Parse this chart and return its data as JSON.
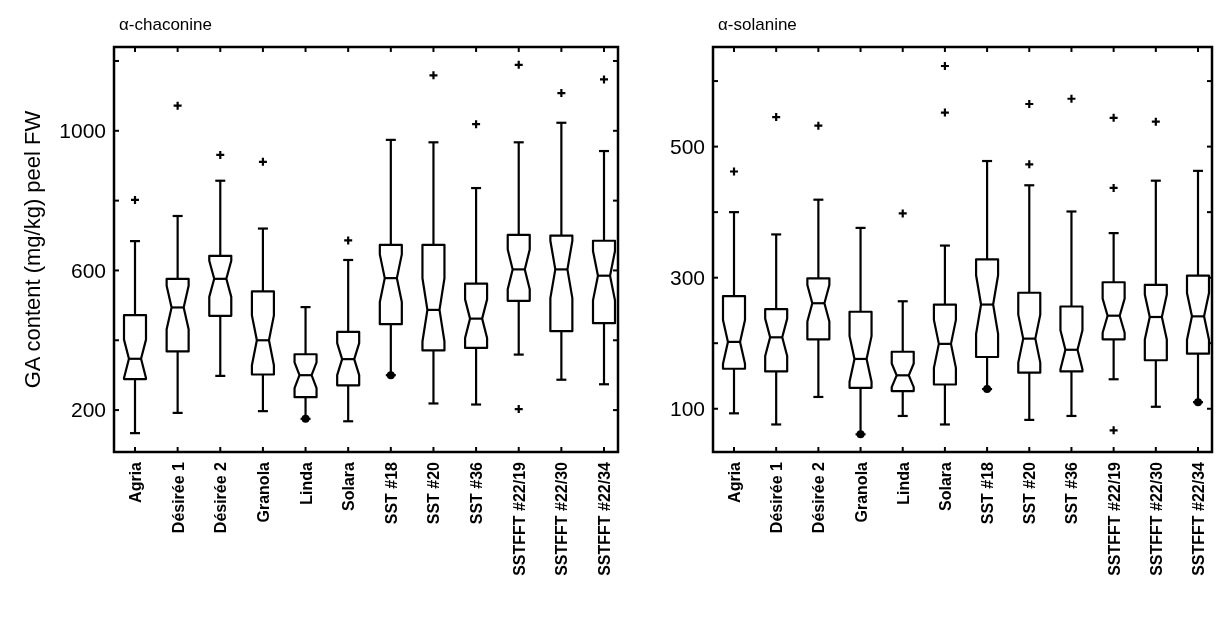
{
  "chart_data": [
    {
      "type": "box",
      "title": "α-chaconine",
      "ylabel": "GA content (mg/kg) peel FW",
      "categories": [
        "Agria",
        "Désirée 1",
        "Désirée 2",
        "Granola",
        "Linda",
        "Solara",
        "SST #18",
        "SST #20",
        "SST #36",
        "SSTFFT #22/19",
        "SSTFFT #22/30",
        "SSTFFT #22/34"
      ],
      "ylim": [
        80,
        1240
      ],
      "yticks": [
        {
          "value": 200,
          "label": "200"
        },
        {
          "value": 400,
          "label": null
        },
        {
          "value": 600,
          "label": "600"
        },
        {
          "value": 800,
          "label": null
        },
        {
          "value": 1000,
          "label": "1000"
        },
        {
          "value": 1200,
          "label": null
        }
      ],
      "boxes": [
        {
          "low": 134,
          "q1": 289,
          "median": 347,
          "q3": 472,
          "high": 684,
          "outliers": [
            802
          ]
        },
        {
          "low": 192,
          "q1": 368,
          "median": 494,
          "q3": 576,
          "high": 756,
          "outliers": [
            1072
          ]
        },
        {
          "low": 298,
          "q1": 470,
          "median": 576,
          "q3": 642,
          "high": 857,
          "outliers": [
            931
          ]
        },
        {
          "low": 197,
          "q1": 302,
          "median": 400,
          "q3": 540,
          "high": 720,
          "outliers": [
            911
          ]
        },
        {
          "low": 175,
          "q1": 237,
          "median": 300,
          "q3": 360,
          "high": 495,
          "outliers": [
            175
          ]
        },
        {
          "low": 168,
          "q1": 271,
          "median": 346,
          "q3": 424,
          "high": 630,
          "outliers": [
            686
          ]
        },
        {
          "low": 300,
          "q1": 446,
          "median": 578,
          "q3": 673,
          "high": 974,
          "outliers": [
            300
          ]
        },
        {
          "low": 219,
          "q1": 371,
          "median": 487,
          "q3": 673,
          "high": 967,
          "outliers": [
            1159
          ]
        },
        {
          "low": 216,
          "q1": 378,
          "median": 462,
          "q3": 562,
          "high": 836,
          "outliers": [
            1019
          ]
        },
        {
          "low": 359,
          "q1": 513,
          "median": 603,
          "q3": 702,
          "high": 967,
          "outliers": [
            1189,
            203
          ]
        },
        {
          "low": 287,
          "q1": 426,
          "median": 603,
          "q3": 700,
          "high": 1023,
          "outliers": [
            1108
          ]
        },
        {
          "low": 274,
          "q1": 449,
          "median": 585,
          "q3": 685,
          "high": 942,
          "outliers": [
            1147
          ]
        }
      ]
    },
    {
      "type": "box",
      "title": "α-solanine",
      "categories": [
        "Agria",
        "Désirée 1",
        "Désirée 2",
        "Granola",
        "Linda",
        "Solara",
        "SST #18",
        "SST #20",
        "SST #36",
        "SSTFFT #22/19",
        "SSTFFT #22/30",
        "SSTFFT #22/34"
      ],
      "ylim": [
        34,
        652
      ],
      "yticks": [
        {
          "value": 100,
          "label": "100"
        },
        {
          "value": 200,
          "label": null
        },
        {
          "value": 300,
          "label": "300"
        },
        {
          "value": 400,
          "label": null
        },
        {
          "value": 500,
          "label": "500"
        },
        {
          "value": 600,
          "label": null
        }
      ],
      "boxes": [
        {
          "low": 93,
          "q1": 161,
          "median": 202,
          "q3": 272,
          "high": 400,
          "outliers": [
            462
          ]
        },
        {
          "low": 76,
          "q1": 157,
          "median": 209,
          "q3": 252,
          "high": 366,
          "outliers": [
            545
          ]
        },
        {
          "low": 118,
          "q1": 206,
          "median": 261,
          "q3": 299,
          "high": 419,
          "outliers": [
            532
          ]
        },
        {
          "low": 61,
          "q1": 132,
          "median": 176,
          "q3": 248,
          "high": 376,
          "outliers": [
            61
          ]
        },
        {
          "low": 89,
          "q1": 127,
          "median": 151,
          "q3": 187,
          "high": 264,
          "outliers": [
            398
          ]
        },
        {
          "low": 76,
          "q1": 137,
          "median": 199,
          "q3": 259,
          "high": 349,
          "outliers": [
            552,
            623
          ]
        },
        {
          "low": 130,
          "q1": 179,
          "median": 259,
          "q3": 328,
          "high": 478,
          "outliers": [
            130
          ]
        },
        {
          "low": 83,
          "q1": 155,
          "median": 207,
          "q3": 277,
          "high": 441,
          "outliers": [
            565,
            473
          ]
        },
        {
          "low": 89,
          "q1": 157,
          "median": 190,
          "q3": 256,
          "high": 401,
          "outliers": [
            573
          ]
        },
        {
          "low": 145,
          "q1": 206,
          "median": 242,
          "q3": 293,
          "high": 368,
          "outliers": [
            544,
            437,
            67
          ]
        },
        {
          "low": 103,
          "q1": 174,
          "median": 240,
          "q3": 289,
          "high": 448,
          "outliers": [
            538
          ]
        },
        {
          "low": 110,
          "q1": 184,
          "median": 241,
          "q3": 303,
          "high": 463,
          "outliers": [
            110
          ]
        }
      ]
    }
  ]
}
